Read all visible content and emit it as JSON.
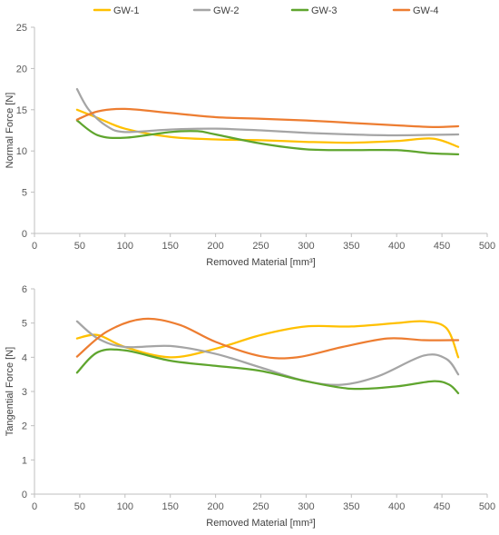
{
  "legend": {
    "position": "top-center",
    "items": [
      {
        "name": "GW-1",
        "color": "#FFC000"
      },
      {
        "name": "GW-2",
        "color": "#A5A5A5"
      },
      {
        "name": "GW-3",
        "color": "#5FA52E"
      },
      {
        "name": "GW-4",
        "color": "#ED7D31"
      }
    ]
  },
  "chart_data": [
    {
      "type": "line",
      "title": "",
      "xlabel": "Removed Material [mm³]",
      "ylabel": "Normal Force [N]",
      "xlim": [
        0,
        500
      ],
      "ylim": [
        0,
        25
      ],
      "xticks": [
        0,
        50,
        100,
        150,
        200,
        250,
        300,
        350,
        400,
        450,
        500
      ],
      "yticks": [
        0,
        5,
        10,
        15,
        20,
        25
      ],
      "grid": false,
      "series": [
        {
          "name": "GW-1",
          "color": "#FFC000",
          "x": [
            47,
            70,
            100,
            150,
            200,
            250,
            300,
            350,
            400,
            440,
            468
          ],
          "y": [
            15,
            14,
            12.7,
            11.7,
            11.4,
            11.3,
            11.1,
            11.0,
            11.2,
            11.5,
            10.5
          ]
        },
        {
          "name": "GW-2",
          "color": "#A5A5A5",
          "x": [
            47,
            60,
            80,
            100,
            150,
            200,
            250,
            300,
            350,
            400,
            468
          ],
          "y": [
            17.5,
            15,
            13,
            12.3,
            12.6,
            12.7,
            12.5,
            12.2,
            12.0,
            11.9,
            12.0
          ]
        },
        {
          "name": "GW-3",
          "color": "#5FA52E",
          "x": [
            47,
            70,
            100,
            150,
            180,
            200,
            250,
            300,
            350,
            400,
            440,
            468
          ],
          "y": [
            13.7,
            11.9,
            11.6,
            12.3,
            12.4,
            12.0,
            10.9,
            10.2,
            10.1,
            10.1,
            9.7,
            9.6
          ]
        },
        {
          "name": "GW-4",
          "color": "#ED7D31",
          "x": [
            47,
            70,
            100,
            150,
            200,
            250,
            300,
            350,
            400,
            440,
            468
          ],
          "y": [
            13.8,
            14.8,
            15.1,
            14.6,
            14.1,
            13.9,
            13.7,
            13.4,
            13.1,
            12.9,
            13.0
          ]
        }
      ]
    },
    {
      "type": "line",
      "title": "",
      "xlabel": "Removed Material [mm³]",
      "ylabel": "Tangential Force [N]",
      "xlim": [
        0,
        500
      ],
      "ylim": [
        0,
        6
      ],
      "xticks": [
        0,
        50,
        100,
        150,
        200,
        250,
        300,
        350,
        400,
        450,
        500
      ],
      "yticks": [
        0,
        1,
        2,
        3,
        4,
        5,
        6
      ],
      "grid": false,
      "series": [
        {
          "name": "GW-1",
          "color": "#FFC000",
          "x": [
            47,
            70,
            100,
            150,
            200,
            250,
            300,
            350,
            400,
            430,
            455,
            468
          ],
          "y": [
            4.55,
            4.65,
            4.3,
            4.0,
            4.25,
            4.65,
            4.9,
            4.9,
            5.0,
            5.05,
            4.85,
            4.0
          ]
        },
        {
          "name": "GW-2",
          "color": "#A5A5A5",
          "x": [
            47,
            70,
            100,
            150,
            200,
            250,
            300,
            340,
            380,
            430,
            455,
            468
          ],
          "y": [
            5.05,
            4.55,
            4.3,
            4.33,
            4.1,
            3.7,
            3.3,
            3.2,
            3.45,
            4.05,
            3.95,
            3.5
          ]
        },
        {
          "name": "GW-3",
          "color": "#5FA52E",
          "x": [
            47,
            70,
            100,
            150,
            200,
            250,
            300,
            350,
            400,
            440,
            458,
            468
          ],
          "y": [
            3.55,
            4.15,
            4.2,
            3.9,
            3.75,
            3.6,
            3.3,
            3.08,
            3.15,
            3.3,
            3.2,
            2.95
          ]
        },
        {
          "name": "GW-4",
          "color": "#ED7D31",
          "x": [
            47,
            80,
            120,
            160,
            200,
            250,
            290,
            340,
            390,
            430,
            468
          ],
          "y": [
            4.02,
            4.75,
            5.12,
            4.95,
            4.45,
            4.03,
            4.0,
            4.3,
            4.55,
            4.5,
            4.5
          ]
        }
      ]
    }
  ]
}
